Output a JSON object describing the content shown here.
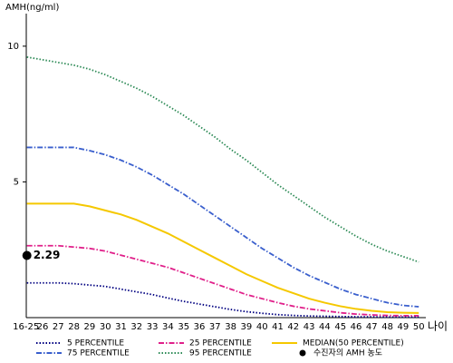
{
  "chart_data": {
    "type": "line",
    "y_label": "AMH(ng/ml)",
    "x_label": "나이",
    "categories": [
      "16-25",
      "26",
      "27",
      "28",
      "29",
      "30",
      "31",
      "32",
      "33",
      "34",
      "35",
      "36",
      "37",
      "38",
      "39",
      "40",
      "41",
      "42",
      "43",
      "44",
      "45",
      "46",
      "47",
      "48",
      "49",
      "50"
    ],
    "ylim": [
      0,
      11.2
    ],
    "yticks": [
      5,
      10
    ],
    "series": [
      {
        "name": "5 PERCENTILE",
        "color": "#000080",
        "style": "dotted",
        "values": [
          1.28,
          1.28,
          1.28,
          1.25,
          1.2,
          1.15,
          1.05,
          0.95,
          0.85,
          0.72,
          0.6,
          0.5,
          0.4,
          0.3,
          0.22,
          0.16,
          0.11,
          0.08,
          0.06,
          0.05,
          0.04,
          0.03,
          0.03,
          0.02,
          0.02,
          0.02
        ]
      },
      {
        "name": "25 PERCENTILE",
        "color": "#e0208a",
        "style": "dash-dot",
        "values": [
          2.65,
          2.65,
          2.65,
          2.6,
          2.55,
          2.45,
          2.3,
          2.15,
          2.0,
          1.85,
          1.65,
          1.45,
          1.25,
          1.05,
          0.85,
          0.7,
          0.55,
          0.42,
          0.32,
          0.25,
          0.18,
          0.13,
          0.1,
          0.08,
          0.07,
          0.07
        ]
      },
      {
        "name": "MEDIAN(50 PERCENTILE)",
        "color": "#f5c800",
        "style": "solid",
        "values": [
          4.2,
          4.2,
          4.2,
          4.2,
          4.1,
          3.95,
          3.8,
          3.6,
          3.35,
          3.1,
          2.8,
          2.5,
          2.2,
          1.9,
          1.6,
          1.35,
          1.1,
          0.9,
          0.7,
          0.55,
          0.42,
          0.32,
          0.25,
          0.2,
          0.18,
          0.17
        ]
      },
      {
        "name": "75 PERCENTILE",
        "color": "#3a5fcd",
        "style": "dash-dot",
        "values": [
          6.27,
          6.27,
          6.27,
          6.27,
          6.15,
          6.0,
          5.8,
          5.55,
          5.25,
          4.9,
          4.55,
          4.15,
          3.75,
          3.35,
          2.95,
          2.55,
          2.2,
          1.85,
          1.55,
          1.3,
          1.05,
          0.85,
          0.7,
          0.55,
          0.45,
          0.4
        ]
      },
      {
        "name": "95 PERCENTILE",
        "color": "#2e8b57",
        "style": "dotted",
        "values": [
          9.6,
          9.5,
          9.4,
          9.3,
          9.15,
          8.95,
          8.7,
          8.45,
          8.15,
          7.8,
          7.45,
          7.05,
          6.65,
          6.2,
          5.8,
          5.35,
          4.9,
          4.5,
          4.1,
          3.7,
          3.35,
          3.0,
          2.7,
          2.45,
          2.25,
          2.05
        ]
      },
      {
        "name": "수진자의 AMH 농도",
        "color": "#000000",
        "style": "point",
        "values": [
          2.29,
          null,
          null,
          null,
          null,
          null,
          null,
          null,
          null,
          null,
          null,
          null,
          null,
          null,
          null,
          null,
          null,
          null,
          null,
          null,
          null,
          null,
          null,
          null,
          null,
          null
        ]
      }
    ]
  }
}
